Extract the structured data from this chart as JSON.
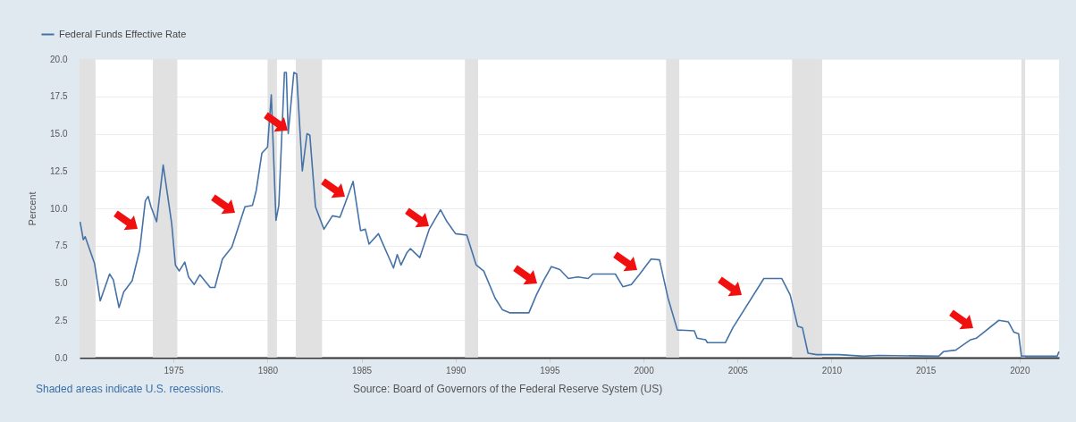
{
  "chart_data": {
    "type": "line",
    "ylabel": "Percent",
    "xlim": [
      1970,
      2022.1
    ],
    "xticks": [
      1975,
      1980,
      1985,
      1990,
      1995,
      2000,
      2005,
      2010,
      2015,
      2020
    ],
    "ylim": [
      0,
      20
    ],
    "yticks": [
      {
        "value": 0,
        "label": "0.0"
      },
      {
        "value": 2.5,
        "label": "2.5"
      },
      {
        "value": 5,
        "label": "5.0"
      },
      {
        "value": 7.5,
        "label": "7.5"
      },
      {
        "value": 10,
        "label": "10.0"
      },
      {
        "value": 12.5,
        "label": "12.5"
      },
      {
        "value": 15,
        "label": "15.0"
      },
      {
        "value": 17.5,
        "label": "17.5"
      },
      {
        "value": 20,
        "label": "20.0"
      }
    ],
    "grid": "y",
    "legend": "top left",
    "line_style": "solid",
    "x": [
      1970.03,
      1970.2,
      1970.3,
      1970.8,
      1971.1,
      1971.6,
      1971.8,
      1972.1,
      1972.35,
      1972.8,
      1973.2,
      1973.5,
      1973.65,
      1973.8,
      1974.1,
      1974.45,
      1974.9,
      1975.1,
      1975.3,
      1975.6,
      1975.8,
      1976.1,
      1976.4,
      1976.95,
      1977.2,
      1977.6,
      1978.1,
      1978.8,
      1979.2,
      1979.4,
      1979.7,
      1980.0,
      1980.2,
      1980.45,
      1980.6,
      1980.9,
      1981.0,
      1981.1,
      1981.4,
      1981.55,
      1981.85,
      1982.1,
      1982.25,
      1982.55,
      1983.0,
      1983.45,
      1983.85,
      1984.15,
      1984.55,
      1984.95,
      1985.2,
      1985.4,
      1985.9,
      1986.7,
      1986.9,
      1987.1,
      1987.4,
      1987.6,
      1988.1,
      1988.6,
      1989.2,
      1989.55,
      1990.0,
      1990.6,
      1991.1,
      1991.5,
      1992.1,
      1992.5,
      1992.9,
      1993.9,
      1994.3,
      1994.7,
      1995.1,
      1995.55,
      1996.0,
      1996.5,
      1997.05,
      1997.3,
      1998.5,
      1998.9,
      1999.35,
      1999.8,
      2000.4,
      2000.85,
      2001.3,
      2001.8,
      2002.7,
      2002.85,
      2003.3,
      2003.4,
      2004.35,
      2004.75,
      2006.4,
      2007.35,
      2007.8,
      2008.2,
      2008.45,
      2008.75,
      2009.2,
      2010.4,
      2011.7,
      2012.5,
      2015.7,
      2015.95,
      2016.6,
      2017.4,
      2017.7,
      2018.9,
      2019.4,
      2019.7,
      2019.95,
      2020.1,
      2022.0,
      2022.1
    ],
    "series": [
      {
        "name": "Federal Funds Effective Rate",
        "color": "#4572a7",
        "values": [
          9.1,
          7.9,
          8.1,
          6.3,
          3.8,
          5.6,
          5.2,
          3.35,
          4.4,
          5.15,
          7.2,
          10.5,
          10.8,
          10.1,
          9.1,
          12.9,
          9.0,
          6.2,
          5.8,
          6.4,
          5.4,
          4.9,
          5.55,
          4.7,
          4.7,
          6.6,
          7.4,
          10.1,
          10.2,
          11.2,
          13.7,
          14.1,
          17.6,
          9.2,
          10.2,
          19.1,
          19.1,
          15.0,
          19.1,
          19.0,
          12.5,
          15.0,
          14.9,
          10.1,
          8.6,
          9.5,
          9.4,
          10.4,
          11.8,
          8.5,
          8.6,
          7.6,
          8.3,
          6.0,
          6.9,
          6.2,
          7.0,
          7.3,
          6.7,
          8.6,
          9.9,
          9.1,
          8.3,
          8.2,
          6.2,
          5.8,
          4.0,
          3.2,
          3.0,
          3.0,
          4.2,
          5.2,
          6.1,
          5.9,
          5.3,
          5.4,
          5.3,
          5.6,
          5.6,
          4.75,
          4.9,
          5.6,
          6.6,
          6.55,
          4.0,
          1.85,
          1.8,
          1.3,
          1.2,
          1.0,
          1.0,
          2.0,
          5.3,
          5.3,
          4.2,
          2.1,
          2.0,
          0.3,
          0.2,
          0.2,
          0.1,
          0.15,
          0.1,
          0.4,
          0.5,
          1.2,
          1.3,
          2.5,
          2.4,
          1.7,
          1.6,
          0.1,
          0.1,
          0.4
        ]
      }
    ],
    "bands": [
      {
        "axis": "x",
        "from": 1970.0,
        "to": 1970.85,
        "color": "#e1e1e1"
      },
      {
        "axis": "x",
        "from": 1973.9,
        "to": 1975.2,
        "color": "#e1e1e1"
      },
      {
        "axis": "x",
        "from": 1980.0,
        "to": 1980.5,
        "color": "#e1e1e1"
      },
      {
        "axis": "x",
        "from": 1981.5,
        "to": 1982.9,
        "color": "#e1e1e1"
      },
      {
        "axis": "x",
        "from": 1990.5,
        "to": 1991.2,
        "color": "#e1e1e1"
      },
      {
        "axis": "x",
        "from": 2001.2,
        "to": 2001.9,
        "color": "#e1e1e1"
      },
      {
        "axis": "x",
        "from": 2007.9,
        "to": 2009.5,
        "color": "#e1e1e1"
      },
      {
        "axis": "x",
        "from": 2020.1,
        "to": 2020.3,
        "color": "#e1e1e1"
      }
    ],
    "annotations": [
      "Shaded areas indicate U.S. recessions.",
      "Source: Board of Governors of the Federal Reserve System (US)"
    ]
  }
}
